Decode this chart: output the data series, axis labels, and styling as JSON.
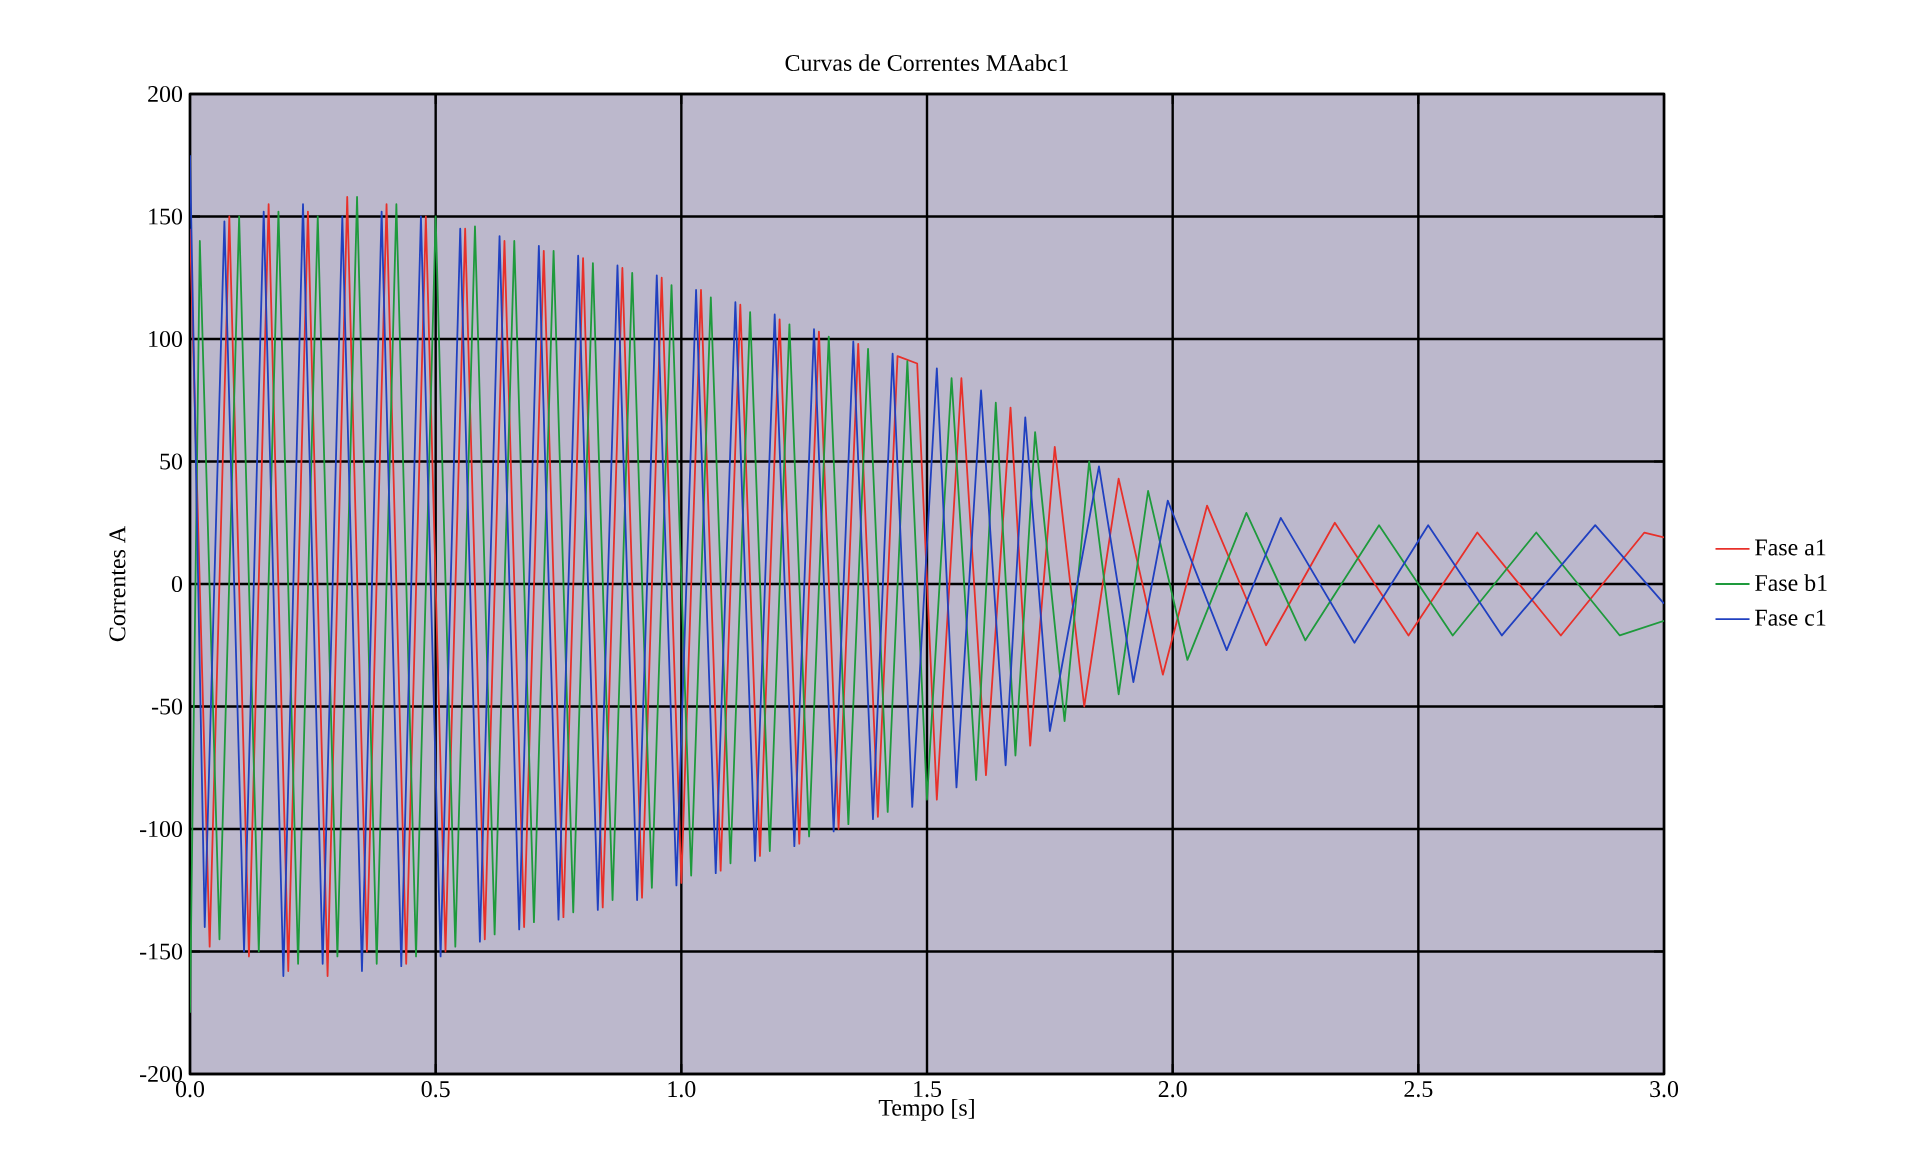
{
  "chart_data": {
    "type": "line",
    "title": "Curvas de Correntes MAabc1",
    "xlabel": "Tempo  [s]",
    "ylabel": "Correntes  A",
    "xlim": [
      0,
      3
    ],
    "ylim": [
      -200,
      200
    ],
    "xticks": [
      {
        "value": 0,
        "label": "0.0"
      },
      {
        "value": 0.5,
        "label": "0.5"
      },
      {
        "value": 1,
        "label": "1.0"
      },
      {
        "value": 1.5,
        "label": "1.5"
      },
      {
        "value": 2,
        "label": "2.0"
      },
      {
        "value": 2.5,
        "label": "2.5"
      },
      {
        "value": 3,
        "label": "3.0"
      }
    ],
    "yticks": [
      -200,
      -150,
      -100,
      -50,
      0,
      50,
      100,
      150,
      200
    ],
    "grid": true,
    "legend": "right",
    "series": [
      {
        "name": "Fase a1",
        "color": "#e8302a",
        "x": [
          0,
          0.04,
          0.08,
          0.12,
          0.16,
          0.2,
          0.24,
          0.28,
          0.32,
          0.36,
          0.4,
          0.44,
          0.48,
          0.52,
          0.56,
          0.6,
          0.64,
          0.68,
          0.72,
          0.76,
          0.8,
          0.84,
          0.88,
          0.92,
          0.96,
          1.0,
          1.04,
          1.08,
          1.12,
          1.16,
          1.2,
          1.24,
          1.28,
          1.32,
          1.36,
          1.4,
          1.44,
          1.48,
          1.52,
          1.57,
          1.62,
          1.67,
          1.71,
          1.76,
          1.82,
          1.89,
          1.98,
          2.07,
          2.19,
          2.33,
          2.48,
          2.62,
          2.79,
          2.96,
          3.0
        ],
        "values": [
          145,
          -148,
          150,
          -152,
          155,
          -158,
          152,
          -160,
          158,
          -150,
          155,
          -155,
          150,
          -150,
          145,
          -145,
          140,
          -140,
          136,
          -136,
          133,
          -132,
          129,
          -128,
          125,
          -122,
          120,
          -117,
          114,
          -111,
          108,
          -106,
          103,
          -100,
          98,
          -95,
          93,
          90,
          -88,
          84,
          -78,
          72,
          -66,
          56,
          -50,
          43,
          -37,
          32,
          -25,
          25,
          -21,
          21,
          -21,
          21,
          19
        ]
      },
      {
        "name": "Fase b1",
        "color": "#1e9a3c",
        "x": [
          0,
          0.02,
          0.06,
          0.1,
          0.14,
          0.18,
          0.22,
          0.26,
          0.3,
          0.34,
          0.38,
          0.42,
          0.46,
          0.5,
          0.54,
          0.58,
          0.62,
          0.66,
          0.7,
          0.74,
          0.78,
          0.82,
          0.86,
          0.9,
          0.94,
          0.98,
          1.02,
          1.06,
          1.1,
          1.14,
          1.18,
          1.22,
          1.26,
          1.3,
          1.34,
          1.38,
          1.42,
          1.46,
          1.5,
          1.55,
          1.6,
          1.64,
          1.68,
          1.72,
          1.78,
          1.83,
          1.89,
          1.95,
          2.03,
          2.15,
          2.27,
          2.42,
          2.57,
          2.74,
          2.91,
          3.0
        ],
        "values": [
          -175,
          140,
          -145,
          150,
          -150,
          152,
          -155,
          150,
          -152,
          158,
          -155,
          155,
          -152,
          150,
          -148,
          146,
          -143,
          140,
          -138,
          136,
          -134,
          131,
          -129,
          127,
          -124,
          122,
          -119,
          117,
          -114,
          111,
          -109,
          106,
          -103,
          101,
          -98,
          96,
          -93,
          91,
          -88,
          84,
          -80,
          74,
          -70,
          62,
          -56,
          50,
          -45,
          38,
          -31,
          29,
          -23,
          24,
          -21,
          21,
          -21,
          -15
        ]
      },
      {
        "name": "Fase c1",
        "color": "#2040c0",
        "x": [
          0,
          0.03,
          0.07,
          0.11,
          0.15,
          0.19,
          0.23,
          0.27,
          0.31,
          0.35,
          0.39,
          0.43,
          0.47,
          0.51,
          0.55,
          0.59,
          0.63,
          0.67,
          0.71,
          0.75,
          0.79,
          0.83,
          0.87,
          0.91,
          0.95,
          0.99,
          1.03,
          1.07,
          1.11,
          1.15,
          1.19,
          1.23,
          1.27,
          1.31,
          1.35,
          1.39,
          1.43,
          1.47,
          1.52,
          1.56,
          1.61,
          1.66,
          1.7,
          1.75,
          1.85,
          1.92,
          1.99,
          2.11,
          2.22,
          2.37,
          2.52,
          2.67,
          2.86,
          3.0
        ],
        "values": [
          175,
          -140,
          148,
          -150,
          152,
          -160,
          155,
          -155,
          150,
          -158,
          152,
          -156,
          150,
          -152,
          145,
          -146,
          142,
          -141,
          138,
          -137,
          134,
          -133,
          130,
          -129,
          126,
          -123,
          120,
          -118,
          115,
          -113,
          110,
          -107,
          104,
          -101,
          99,
          -96,
          94,
          -91,
          88,
          -83,
          79,
          -74,
          68,
          -60,
          48,
          -40,
          34,
          -27,
          27,
          -24,
          24,
          -21,
          24,
          -8
        ]
      }
    ]
  }
}
